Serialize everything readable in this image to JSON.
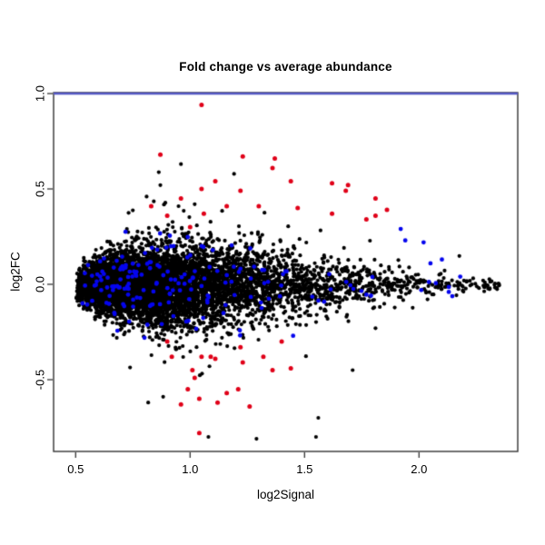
{
  "figure": {
    "title": "Fold change vs average abundance",
    "xlabel": "log2Signal",
    "ylabel": "log2FC"
  },
  "chart_data": {
    "type": "scatter",
    "title": "Fold change vs average abundance",
    "xlabel": "log2Signal",
    "ylabel": "log2FC",
    "xlim": [
      0.4,
      2.43
    ],
    "ylim": [
      -0.88,
      1.0
    ],
    "grid": false,
    "legend": null,
    "x_ticks": {
      "values": [
        0.5,
        1.0,
        1.5,
        2.0
      ],
      "labels": [
        "0.5",
        "1.0",
        "1.5",
        "2.0"
      ]
    },
    "y_ticks": {
      "values": [
        -0.5,
        0.0,
        0.5,
        1.0
      ],
      "labels": [
        "-0.5",
        "0.0",
        "0.5",
        "1.0"
      ]
    },
    "reference_line": {
      "y": 1.0,
      "color": "#5558c4",
      "width": 2.6
    },
    "colors": {
      "background": "#ffffff",
      "box": "#333333",
      "text": "#000000",
      "black_points": "#000000",
      "blue_points": "#0505ee",
      "red_points": "#e00018"
    },
    "marker": "filled-dot",
    "series": [
      {
        "name": "background-genes",
        "color": "#000000",
        "n": 6500,
        "summary": "dense MA cloud centered on log2FC=0, starts at log2Signal 0.5, widest near 0.8-1.3, tapers to a thin band ending near 2.35",
        "generator": {
          "seed": 911,
          "x_mix": [
            [
              0.6,
              0.155
            ],
            [
              0.4,
              0.33
            ]
          ],
          "x_offset": 0.5,
          "x_span_max": 1.86,
          "sd_profile_x": [
            0.5,
            0.7,
            0.9,
            1.1,
            1.3,
            1.5,
            1.7,
            1.9,
            2.1,
            2.35
          ],
          "sd_profile_sd": [
            0.045,
            0.085,
            0.115,
            0.115,
            0.1,
            0.085,
            0.062,
            0.042,
            0.026,
            0.015
          ],
          "sd_mult": 1.0,
          "y_mean": -0.005,
          "outlier_frac": 0.018,
          "outlier_mult": 2.9,
          "y_clip": [
            -0.81,
            0.66
          ]
        },
        "extra_points": [
          [
            2.35,
            0.0
          ],
          [
            2.28,
            0.02
          ],
          [
            1.55,
            -0.8
          ],
          [
            1.29,
            -0.81
          ],
          [
            1.08,
            -0.8
          ],
          [
            1.56,
            -0.7
          ],
          [
            0.96,
            0.63
          ],
          [
            0.87,
            0.52
          ],
          [
            0.81,
            0.46
          ],
          [
            1.02,
            0.42
          ],
          [
            1.71,
            -0.45
          ],
          [
            1.81,
            -0.23
          ]
        ]
      },
      {
        "name": "blue-flagged-genes",
        "color": "#0505ee",
        "n": 175,
        "summary": "blue flagged genes sprinkled through the cloud, mostly |log2FC| 0.05-0.30, visible at cloud edges, extending right to ~2.18",
        "generator": {
          "seed": 377,
          "x_mix": [
            [
              0.5,
              0.17
            ],
            [
              0.5,
              0.33
            ]
          ],
          "x_offset": 0.5,
          "x_span_max": 1.7,
          "sd_profile_x": [
            0.5,
            0.7,
            0.9,
            1.1,
            1.3,
            1.5,
            1.7,
            1.9,
            2.1,
            2.35
          ],
          "sd_profile_sd": [
            0.045,
            0.085,
            0.115,
            0.115,
            0.1,
            0.085,
            0.062,
            0.042,
            0.026,
            0.015
          ],
          "sd_mult": 1.2,
          "y_mean": 0,
          "outlier_frac": 0,
          "outlier_mult": 1,
          "y_clip": [
            -0.295,
            0.295
          ]
        },
        "extra_points": [
          [
            1.92,
            0.29
          ],
          [
            1.94,
            0.23
          ],
          [
            2.02,
            0.22
          ],
          [
            2.1,
            0.13
          ],
          [
            2.05,
            0.11
          ],
          [
            2.18,
            0.04
          ],
          [
            2.01,
            -0.03
          ],
          [
            2.13,
            -0.04
          ],
          [
            1.45,
            -0.27
          ]
        ]
      },
      {
        "name": "red-flagged-genes",
        "color": "#e00018",
        "summary": "red flagged genes at large |log2FC|",
        "points": [
          [
            1.05,
            0.94
          ],
          [
            0.87,
            0.68
          ],
          [
            1.23,
            0.67
          ],
          [
            1.37,
            0.66
          ],
          [
            1.36,
            0.61
          ],
          [
            1.11,
            0.54
          ],
          [
            1.44,
            0.54
          ],
          [
            1.62,
            0.53
          ],
          [
            1.69,
            0.52
          ],
          [
            1.05,
            0.5
          ],
          [
            1.22,
            0.49
          ],
          [
            1.68,
            0.49
          ],
          [
            0.96,
            0.45
          ],
          [
            1.81,
            0.45
          ],
          [
            0.83,
            0.41
          ],
          [
            1.16,
            0.41
          ],
          [
            1.3,
            0.41
          ],
          [
            1.47,
            0.4
          ],
          [
            1.86,
            0.39
          ],
          [
            1.62,
            0.37
          ],
          [
            1.81,
            0.36
          ],
          [
            1.77,
            0.34
          ],
          [
            1.06,
            0.37
          ],
          [
            0.9,
            0.36
          ],
          [
            1.0,
            0.3
          ],
          [
            0.9,
            -0.3
          ],
          [
            1.4,
            -0.3
          ],
          [
            1.22,
            -0.33
          ],
          [
            0.92,
            -0.38
          ],
          [
            1.05,
            -0.38
          ],
          [
            1.09,
            -0.38
          ],
          [
            1.11,
            -0.39
          ],
          [
            1.32,
            -0.38
          ],
          [
            1.23,
            -0.41
          ],
          [
            1.01,
            -0.45
          ],
          [
            1.36,
            -0.45
          ],
          [
            1.44,
            -0.44
          ],
          [
            1.02,
            -0.49
          ],
          [
            0.99,
            -0.55
          ],
          [
            1.16,
            -0.57
          ],
          [
            1.21,
            -0.55
          ],
          [
            1.04,
            -0.6
          ],
          [
            1.12,
            -0.62
          ],
          [
            0.96,
            -0.63
          ],
          [
            1.26,
            -0.64
          ],
          [
            1.04,
            -0.78
          ]
        ]
      }
    ]
  }
}
